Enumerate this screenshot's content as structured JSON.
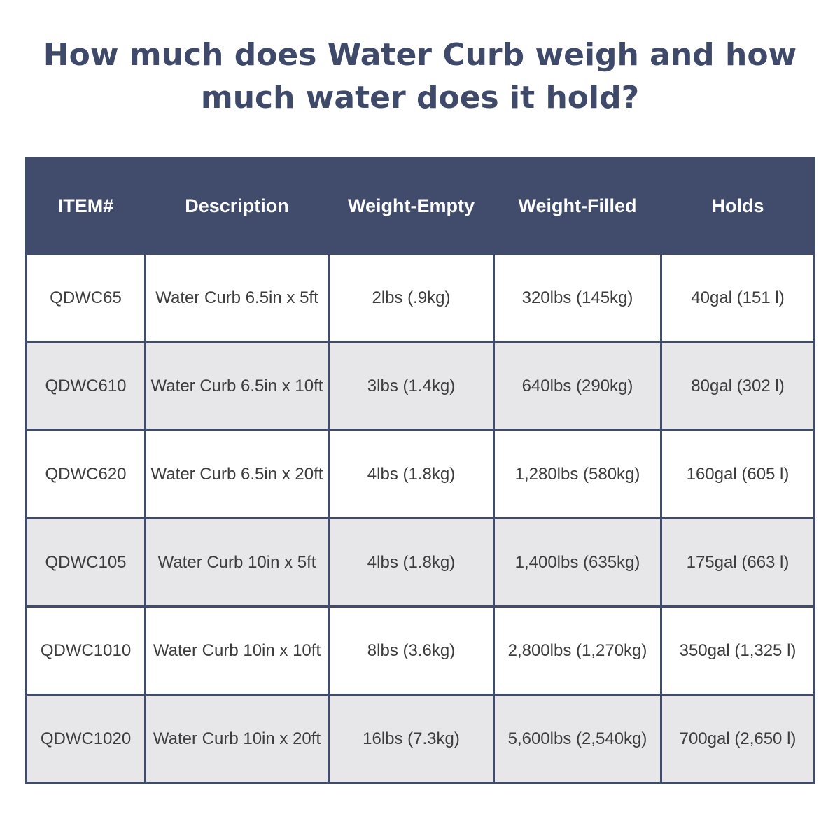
{
  "title": {
    "line1": "How much does Water Curb weigh and how",
    "line2": "much water does it hold?"
  },
  "table": {
    "headers": [
      "ITEM#",
      "Description",
      "Weight-Empty",
      "Weight-Filled",
      "Holds"
    ],
    "rows": [
      [
        "QDWC65",
        "Water Curb 6.5in x 5ft",
        "2lbs (.9kg)",
        "320lbs (145kg)",
        "40gal (151 l)"
      ],
      [
        "QDWC610",
        "Water Curb 6.5in x 10ft",
        "3lbs (1.4kg)",
        "640lbs (290kg)",
        "80gal (302 l)"
      ],
      [
        "QDWC620",
        "Water Curb 6.5in x 20ft",
        "4lbs (1.8kg)",
        "1,280lbs (580kg)",
        "160gal (605 l)"
      ],
      [
        "QDWC105",
        "Water Curb 10in x 5ft",
        "4lbs (1.8kg)",
        "1,400lbs (635kg)",
        "175gal (663 l)"
      ],
      [
        "QDWC1010",
        "Water Curb 10in x 10ft",
        "8lbs (3.6kg)",
        "2,800lbs (1,270kg)",
        "350gal (1,325 l)"
      ],
      [
        "QDWC1020",
        "Water Curb 10in x 20ft",
        "16lbs (7.3kg)",
        "5,600lbs (2,540kg)",
        "700gal (2,650 l)"
      ]
    ]
  },
  "colors": {
    "title_text": "#3f4a6a",
    "header_background": "#414b6b",
    "header_text": "#ffffff",
    "row_alt_background": "#e7e7ea",
    "grid_lines": "#414b6b"
  }
}
